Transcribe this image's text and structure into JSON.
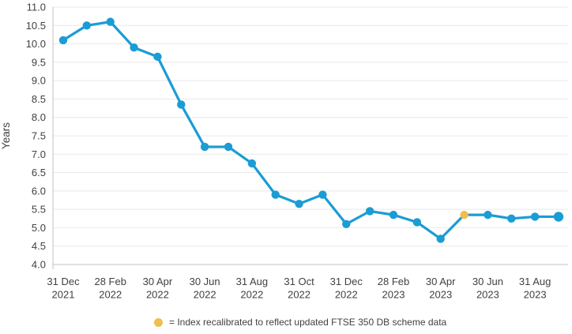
{
  "chart_data": {
    "type": "line",
    "title": "",
    "xlabel": "",
    "ylabel": "Years",
    "ylim": [
      4.0,
      11.0
    ],
    "ytick_step": 0.5,
    "grid": true,
    "legend_position": "bottom-center",
    "x_tick_labels": [
      [
        "31 Dec",
        "2021"
      ],
      [
        "28 Feb",
        "2022"
      ],
      [
        "30 Apr",
        "2022"
      ],
      [
        "30 Jun",
        "2022"
      ],
      [
        "31 Aug",
        "2022"
      ],
      [
        "31 Oct",
        "2022"
      ],
      [
        "31 Dec",
        "2022"
      ],
      [
        "28 Feb",
        "2023"
      ],
      [
        "30 Apr",
        "2023"
      ],
      [
        "30 Jun",
        "2023"
      ],
      [
        "31 Aug",
        "2023"
      ]
    ],
    "series": [
      {
        "name": "index",
        "color": "#1B9CD4",
        "x": [
          "31 Dec 2021",
          "31 Jan 2022",
          "28 Feb 2022",
          "31 Mar 2022",
          "30 Apr 2022",
          "31 May 2022",
          "30 Jun 2022",
          "31 Jul 2022",
          "31 Aug 2022",
          "30 Sep 2022",
          "31 Oct 2022",
          "30 Nov 2022",
          "31 Dec 2022",
          "31 Jan 2023",
          "28 Feb 2023",
          "31 Mar 2023",
          "30 Apr 2023",
          "31 May 2023",
          "30 Jun 2023",
          "31 Jul 2023",
          "31 Aug 2023",
          "30 Sep 2023"
        ],
        "values": [
          10.1,
          10.5,
          10.6,
          9.9,
          9.65,
          8.35,
          7.2,
          7.2,
          6.75,
          5.9,
          5.65,
          5.9,
          5.1,
          5.45,
          5.35,
          5.15,
          4.7,
          5.35,
          5.35,
          5.25,
          5.3,
          5.3
        ]
      }
    ],
    "recalibrated_point_index": 17,
    "legend": {
      "text": "= Index recalibrated to reflect updated FTSE 350 DB scheme data"
    }
  },
  "colors": {
    "line": "#1B9CD4",
    "recalibrated": "#EFBF4B",
    "grid": "#E9E8EA",
    "axis": "#C4C1C3",
    "text": "#414042"
  }
}
